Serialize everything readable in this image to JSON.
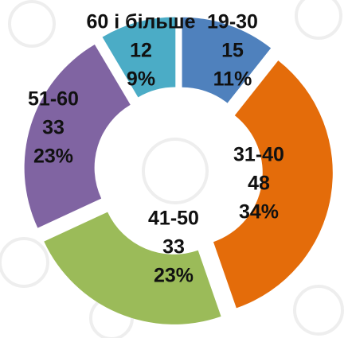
{
  "chart_data": {
    "type": "donut",
    "categories": [
      "19-30",
      "31-40",
      "41-50",
      "51-60",
      "60 і більше"
    ],
    "values": [
      15,
      48,
      33,
      33,
      12
    ],
    "percent_labels": [
      "11%",
      "34%",
      "23%",
      "23%",
      "9%"
    ],
    "colors": [
      "#4f81bd",
      "#e46c0a",
      "#9bbb59",
      "#8064a2",
      "#4bacc6"
    ]
  }
}
